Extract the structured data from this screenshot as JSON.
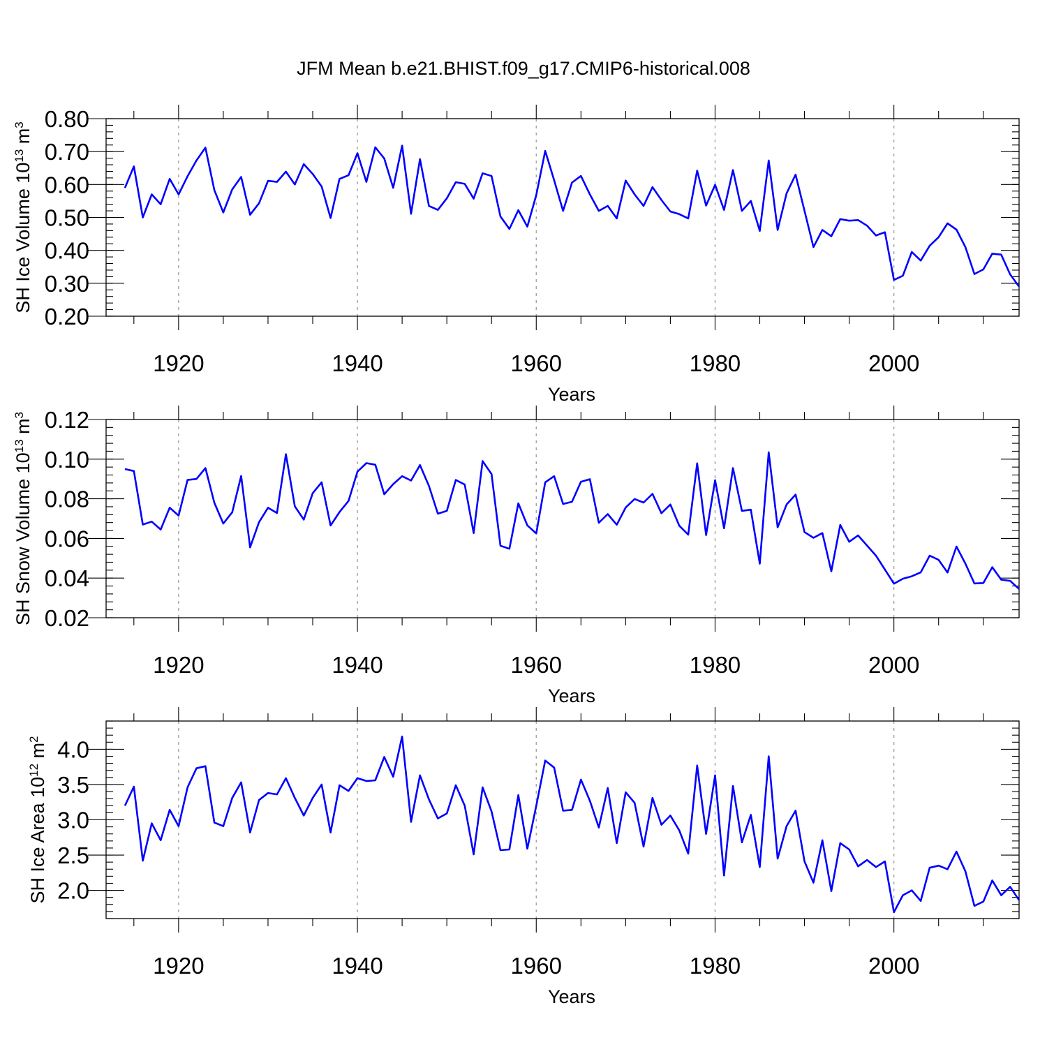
{
  "title": "JFM Mean b.e21.BHIST.f09_g17.CMIP6-historical.008",
  "colors": {
    "line": "#0000ff",
    "grid": "#9a9a9a",
    "axis": "#000000"
  },
  "chart_data": [
    {
      "type": "line",
      "xlabel": "Years",
      "ylabel": {
        "base": "SH Ice Volume 10",
        "exp": "13",
        "unit": " m",
        "unit_exp": "3"
      },
      "xlim": [
        1914,
        2014
      ],
      "ylim": [
        0.2,
        0.8
      ],
      "grid_x": [
        1920,
        1940,
        1960,
        1980,
        2000
      ],
      "x_ticks": [
        1920,
        1940,
        1960,
        1980,
        2000
      ],
      "x_tick_labels": [
        "1920",
        "1940",
        "1960",
        "1980",
        "2000"
      ],
      "y_ticks": [
        0.2,
        0.3,
        0.4,
        0.5,
        0.6,
        0.7,
        0.8
      ],
      "y_tick_labels": [
        "0.20",
        "0.30",
        "0.40",
        "0.50",
        "0.60",
        "0.70",
        "0.80"
      ],
      "y_minor_step": 0.02,
      "series": [
        {
          "name": "SH Ice Volume",
          "x_start": 1914,
          "values": [
            0.59,
            0.655,
            0.5,
            0.57,
            0.54,
            0.617,
            0.57,
            0.625,
            0.673,
            0.712,
            0.583,
            0.515,
            0.585,
            0.623,
            0.508,
            0.543,
            0.611,
            0.608,
            0.639,
            0.6,
            0.662,
            0.632,
            0.594,
            0.498,
            0.617,
            0.628,
            0.695,
            0.608,
            0.713,
            0.679,
            0.59,
            0.718,
            0.511,
            0.677,
            0.535,
            0.523,
            0.558,
            0.607,
            0.602,
            0.557,
            0.634,
            0.626,
            0.503,
            0.465,
            0.522,
            0.472,
            0.568,
            0.702,
            0.613,
            0.52,
            0.606,
            0.626,
            0.57,
            0.52,
            0.535,
            0.497,
            0.612,
            0.57,
            0.535,
            0.592,
            0.553,
            0.518,
            0.51,
            0.497,
            0.642,
            0.536,
            0.599,
            0.523,
            0.644,
            0.52,
            0.55,
            0.459,
            0.673,
            0.462,
            0.573,
            0.63,
            0.52,
            0.41,
            0.462,
            0.443,
            0.495,
            0.49,
            0.492,
            0.475,
            0.445,
            0.455,
            0.31,
            0.323,
            0.395,
            0.369,
            0.414,
            0.44,
            0.482,
            0.463,
            0.41,
            0.328,
            0.342,
            0.39,
            0.387,
            0.327,
            0.29
          ]
        }
      ]
    },
    {
      "type": "line",
      "xlabel": "Years",
      "ylabel": {
        "base": "SH Snow Volume 10",
        "exp": "13",
        "unit": " m",
        "unit_exp": "3"
      },
      "xlim": [
        1914,
        2014
      ],
      "ylim": [
        0.02,
        0.12
      ],
      "grid_x": [
        1920,
        1940,
        1960,
        1980,
        2000
      ],
      "x_ticks": [
        1920,
        1940,
        1960,
        1980,
        2000
      ],
      "x_tick_labels": [
        "1920",
        "1940",
        "1960",
        "1980",
        "2000"
      ],
      "y_ticks": [
        0.02,
        0.04,
        0.06,
        0.08,
        0.1,
        0.12
      ],
      "y_tick_labels": [
        "0.02",
        "0.04",
        "0.06",
        "0.08",
        "0.10",
        "0.12"
      ],
      "y_minor_step": 0.004,
      "series": [
        {
          "name": "SH Snow Volume",
          "x_start": 1914,
          "values": [
            0.095,
            0.094,
            0.067,
            0.0685,
            0.0645,
            0.0755,
            0.0715,
            0.0895,
            0.09,
            0.0955,
            0.078,
            0.0675,
            0.0732,
            0.0915,
            0.0555,
            0.0682,
            0.0755,
            0.0728,
            0.1025,
            0.0762,
            0.0695,
            0.0828,
            0.0883,
            0.0665,
            0.0733,
            0.0789,
            0.0937,
            0.098,
            0.0972,
            0.0823,
            0.0874,
            0.0914,
            0.0892,
            0.097,
            0.0865,
            0.0725,
            0.0739,
            0.0895,
            0.0872,
            0.0627,
            0.099,
            0.0925,
            0.0563,
            0.0548,
            0.0777,
            0.0666,
            0.0625,
            0.0883,
            0.0914,
            0.0774,
            0.0785,
            0.0886,
            0.0899,
            0.0679,
            0.0723,
            0.0669,
            0.0756,
            0.0799,
            0.0781,
            0.0825,
            0.0727,
            0.0771,
            0.0664,
            0.0619,
            0.0979,
            0.0617,
            0.0894,
            0.0651,
            0.0955,
            0.0739,
            0.0745,
            0.0473,
            0.1035,
            0.0656,
            0.0771,
            0.0821,
            0.0632,
            0.0603,
            0.0627,
            0.0434,
            0.0668,
            0.0583,
            0.0615,
            0.0564,
            0.0513,
            0.0443,
            0.0372,
            0.0397,
            0.0409,
            0.0429,
            0.0513,
            0.0492,
            0.0428,
            0.0559,
            0.0473,
            0.0373,
            0.0375,
            0.0455,
            0.0392,
            0.0386,
            0.0345
          ]
        }
      ]
    },
    {
      "type": "line",
      "xlabel": "Years",
      "ylabel": {
        "base": "SH Ice Area 10",
        "exp": "12",
        "unit": " m",
        "unit_exp": "2"
      },
      "xlim": [
        1914,
        2014
      ],
      "ylim": [
        1.6,
        4.4
      ],
      "grid_x": [
        1920,
        1940,
        1960,
        1980,
        2000
      ],
      "x_ticks": [
        1920,
        1940,
        1960,
        1980,
        2000
      ],
      "x_tick_labels": [
        "1920",
        "1940",
        "1960",
        "1980",
        "2000"
      ],
      "y_ticks": [
        2.0,
        2.5,
        3.0,
        3.5,
        4.0
      ],
      "y_tick_labels": [
        "2.0",
        "2.5",
        "3.0",
        "3.5",
        "4.0"
      ],
      "y_minor_step": 0.1,
      "series": [
        {
          "name": "SH Ice Area",
          "x_start": 1914,
          "values": [
            3.2,
            3.47,
            2.42,
            2.95,
            2.71,
            3.14,
            2.91,
            3.46,
            3.73,
            3.76,
            2.96,
            2.91,
            3.31,
            3.53,
            2.82,
            3.28,
            3.38,
            3.36,
            3.59,
            3.31,
            3.06,
            3.31,
            3.5,
            2.82,
            3.49,
            3.41,
            3.59,
            3.55,
            3.56,
            3.89,
            3.61,
            4.18,
            2.97,
            3.63,
            3.29,
            3.02,
            3.09,
            3.49,
            3.2,
            2.51,
            3.46,
            3.12,
            2.57,
            2.58,
            3.35,
            2.59,
            3.2,
            3.84,
            3.74,
            3.13,
            3.14,
            3.57,
            3.27,
            2.89,
            3.45,
            2.67,
            3.39,
            3.24,
            2.62,
            3.31,
            2.93,
            3.06,
            2.85,
            2.52,
            3.77,
            2.8,
            3.63,
            2.21,
            3.48,
            2.68,
            3.07,
            2.33,
            3.9,
            2.45,
            2.91,
            3.13,
            2.41,
            2.11,
            2.71,
            1.99,
            2.67,
            2.58,
            2.34,
            2.43,
            2.33,
            2.41,
            1.69,
            1.93,
            2.0,
            1.85,
            2.32,
            2.35,
            2.3,
            2.55,
            2.27,
            1.78,
            1.84,
            2.14,
            1.93,
            2.05,
            1.86
          ]
        }
      ]
    }
  ]
}
